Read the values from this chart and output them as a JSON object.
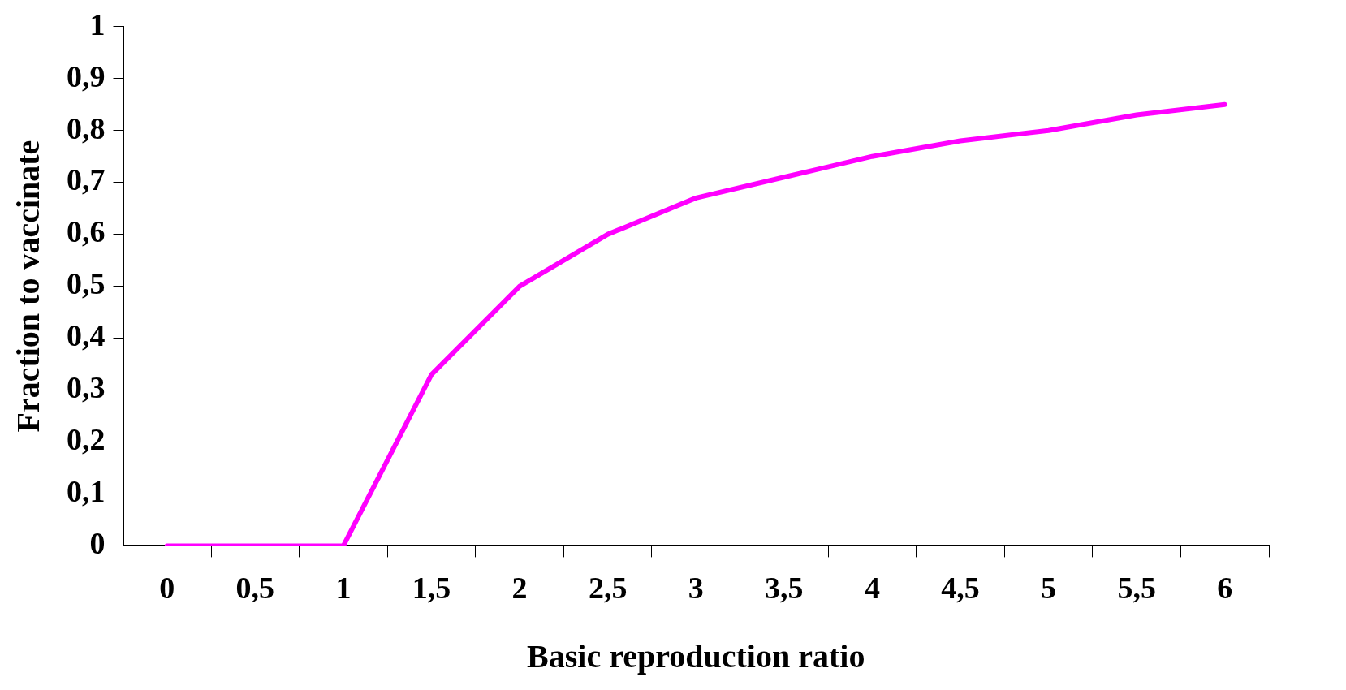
{
  "chart_data": {
    "type": "line",
    "xlabel": "Basic reproduction ratio",
    "ylabel": "Fraction to vaccinate",
    "categories": [
      "0",
      "0,5",
      "1",
      "1,5",
      "2",
      "2,5",
      "3",
      "3,5",
      "4",
      "4,5",
      "5",
      "5,5",
      "6"
    ],
    "series": [
      {
        "color": "#ff00ff",
        "values": [
          0,
          0,
          0,
          0.33,
          0.5,
          0.6,
          0.67,
          0.71,
          0.75,
          0.78,
          0.8,
          0.83,
          0.85
        ]
      }
    ],
    "ylim": [
      0,
      1
    ],
    "yticks": [
      0,
      {
        "value": 0.1,
        "label": "0,1"
      },
      {
        "value": 0.2,
        "label": "0,2"
      },
      {
        "value": 0.3,
        "label": "0,3"
      },
      {
        "value": 0.4,
        "label": "0,4"
      },
      {
        "value": 0.5,
        "label": "0,5"
      },
      {
        "value": 0.6,
        "label": "0,6"
      },
      {
        "value": 0.7,
        "label": "0,7"
      },
      {
        "value": 0.8,
        "label": "0,8"
      },
      {
        "value": 0.9,
        "label": "0,9"
      },
      1
    ],
    "marker": "none",
    "line_style": "solid",
    "legend": false
  }
}
